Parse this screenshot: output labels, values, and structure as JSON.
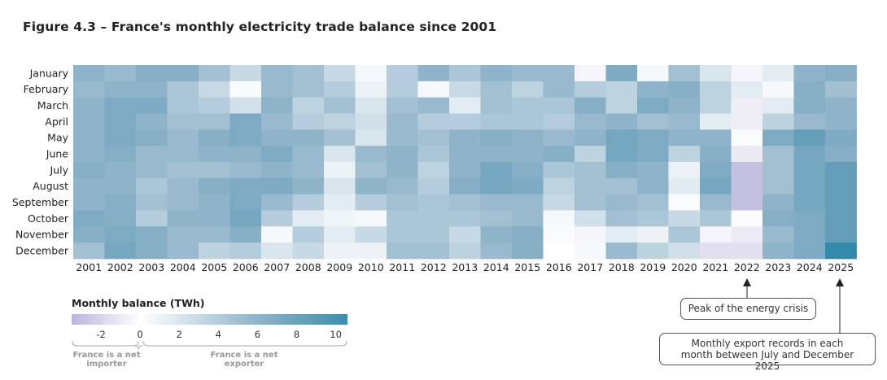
{
  "chart_data": {
    "type": "heatmap",
    "title": "Figure 4.3 – France's monthly electricity trade balance since 2001",
    "x": [
      "2001",
      "2002",
      "2003",
      "2004",
      "2005",
      "2006",
      "2007",
      "2008",
      "2009",
      "2010",
      "2011",
      "2012",
      "2013",
      "2014",
      "2015",
      "2016",
      "2017",
      "2018",
      "2019",
      "2020",
      "2021",
      "2022",
      "2023",
      "2024",
      "2025"
    ],
    "y": [
      "January",
      "February",
      "March",
      "April",
      "May",
      "June",
      "July",
      "August",
      "September",
      "October",
      "November",
      "December"
    ],
    "values_by_year": [
      [
        6,
        5.5,
        6,
        6,
        6,
        6,
        6.5,
        6,
        6,
        7,
        6.5,
        5
      ],
      [
        5.5,
        6,
        7,
        7,
        7,
        6.5,
        6,
        6,
        6.5,
        6.5,
        7,
        7.5
      ],
      [
        6.5,
        6,
        7,
        6,
        6.5,
        5.5,
        5.5,
        4.5,
        5,
        4,
        6.5,
        6.5
      ],
      [
        6.5,
        4.5,
        4.5,
        5,
        5.5,
        5.5,
        5,
        5.5,
        5.5,
        6,
        5.5,
        5.5
      ],
      [
        5,
        3,
        4,
        5,
        6.5,
        6,
        5,
        6.5,
        6,
        6,
        5.5,
        3.5
      ],
      [
        3,
        0.3,
        2.5,
        7,
        7,
        6,
        5.5,
        7,
        7,
        7.5,
        6.5,
        4
      ],
      [
        5.5,
        5.5,
        6,
        5.5,
        6,
        7,
        6,
        7,
        5.5,
        4,
        0.5,
        2
      ],
      [
        5,
        5,
        3.5,
        4,
        6,
        5.5,
        5.5,
        6,
        4,
        1.5,
        4,
        3
      ],
      [
        3,
        4,
        5,
        3.5,
        5,
        2,
        1,
        2,
        1.5,
        0.8,
        1.5,
        1
      ],
      [
        0.5,
        1,
        2,
        2.5,
        2,
        5.5,
        5,
        6,
        4,
        0.5,
        3,
        1
      ],
      [
        4,
        4,
        5,
        5.5,
        5.5,
        6,
        6,
        5.5,
        5,
        4.5,
        4.5,
        5
      ],
      [
        6,
        0.5,
        5.5,
        4,
        5,
        4.5,
        3.5,
        4,
        4.5,
        4.5,
        4.5,
        5
      ],
      [
        4.5,
        3,
        1.5,
        4,
        6,
        6,
        6,
        6.5,
        5,
        4.5,
        3,
        3.5
      ],
      [
        6,
        5,
        5,
        4.5,
        6.5,
        6,
        7.5,
        7.5,
        5.5,
        5,
        6,
        5.5
      ],
      [
        5.5,
        3.5,
        4.5,
        4.5,
        6,
        6,
        6.5,
        7,
        5.5,
        5.5,
        6.5,
        6.5
      ],
      [
        5.5,
        5.5,
        4.5,
        4,
        5.5,
        6.5,
        4.5,
        3.5,
        3,
        0.5,
        0.3,
        0
      ],
      [
        -0.5,
        4,
        6.5,
        5.5,
        6,
        3.5,
        5,
        5,
        5,
        2.5,
        -0.5,
        0.5
      ],
      [
        7,
        3.5,
        3.5,
        6,
        7.5,
        7.5,
        6.5,
        5,
        5.5,
        5,
        1.5,
        5.5
      ],
      [
        0.5,
        6,
        7,
        5,
        7,
        7,
        6,
        6,
        5,
        4.5,
        1,
        3.5
      ],
      [
        5,
        6.5,
        6,
        5.5,
        6,
        3.5,
        1,
        1.5,
        0.3,
        3,
        4.5,
        2.5
      ],
      [
        2,
        3.5,
        3.5,
        1.5,
        6,
        6.5,
        7,
        7.5,
        5.5,
        4.5,
        -0.5,
        -1.5
      ],
      [
        -0.5,
        1.5,
        -0.8,
        -0.8,
        0.3,
        -1,
        -3,
        -3,
        -3,
        -0.2,
        -1,
        -1.5
      ],
      [
        1.5,
        0.5,
        1.5,
        3.5,
        7,
        5,
        5,
        5,
        6,
        6.5,
        5.5,
        6
      ],
      [
        6,
        6.5,
        6.5,
        5.5,
        8.5,
        7.5,
        7.5,
        7.5,
        7.5,
        7,
        7,
        7
      ],
      [
        6.5,
        5,
        6,
        6,
        7,
        6.5,
        8.5,
        8.5,
        8.5,
        8.5,
        8.5,
        11
      ]
    ],
    "colorbar": {
      "title": "Monthly balance (TWh)",
      "range": [
        -3.5,
        10.6
      ],
      "ticks": [
        "-2",
        "0",
        "2",
        "4",
        "6",
        "8",
        "10"
      ],
      "negative_label": "France is a net importer",
      "positive_label": "France is a net exporter"
    },
    "colors": {
      "negative": "#b9b5dc",
      "zero": "#ffffff",
      "mid": "#8fb3c9",
      "max": "#3f8dac",
      "extreme": "#1580a5"
    },
    "annotations": [
      {
        "target": "2022",
        "text": "Peak of the energy crisis"
      },
      {
        "target": "2025",
        "text": "Monthly export records in each month between July and December 2025"
      }
    ]
  }
}
